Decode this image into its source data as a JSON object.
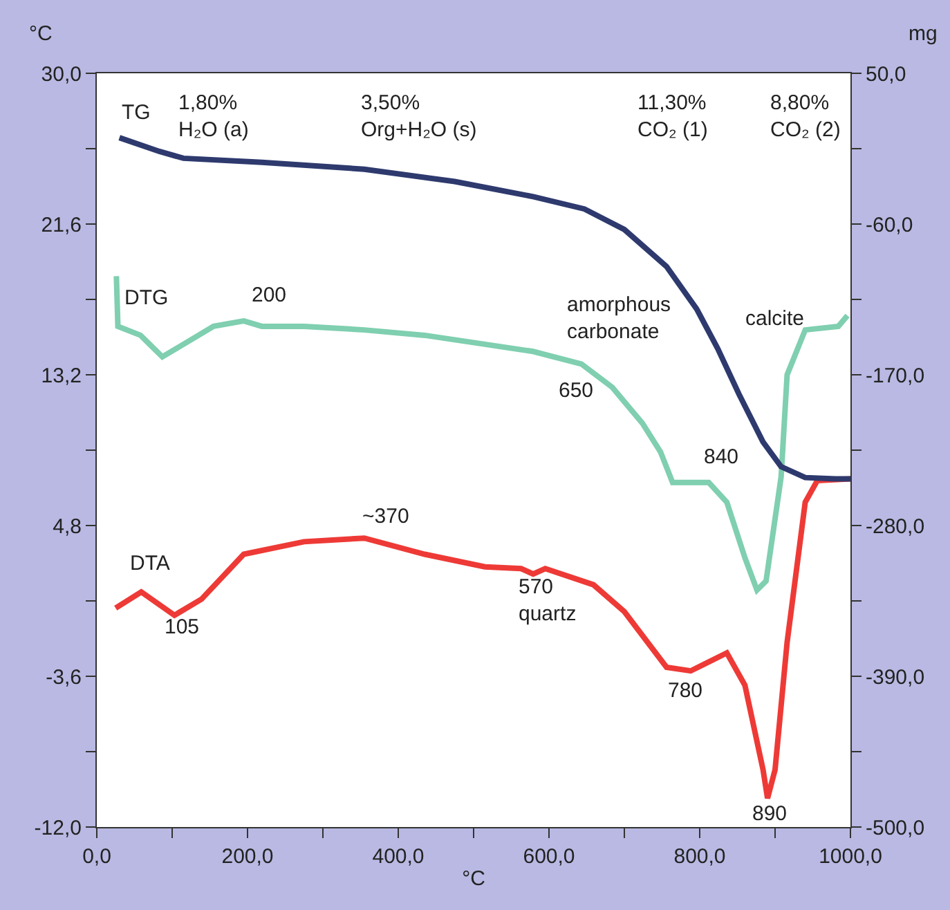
{
  "chart_data": {
    "type": "line",
    "xlabel": "°C",
    "ylabel": "°C",
    "y2label": "mg",
    "xlim": [
      0,
      1000
    ],
    "xticks": [
      {
        "value": 0,
        "label": "0,0"
      },
      {
        "value": 100,
        "label": null
      },
      {
        "value": 200,
        "label": "200,0"
      },
      {
        "value": 300,
        "label": null
      },
      {
        "value": 400,
        "label": "400,0"
      },
      {
        "value": 500,
        "label": null
      },
      {
        "value": 600,
        "label": "600,0"
      },
      {
        "value": 700,
        "label": null
      },
      {
        "value": 800,
        "label": "800,0"
      },
      {
        "value": 900,
        "label": null
      },
      {
        "value": 1000,
        "label": "1000,0"
      }
    ],
    "ylim": [
      -12,
      30
    ],
    "yticks": [
      {
        "value": -12,
        "label": "-12,0"
      },
      {
        "value": -7.8,
        "label": null
      },
      {
        "value": -3.6,
        "label": "-3,6"
      },
      {
        "value": 0.6,
        "label": null
      },
      {
        "value": 4.8,
        "label": "4,8"
      },
      {
        "value": 9,
        "label": null
      },
      {
        "value": 13.2,
        "label": "13,2"
      },
      {
        "value": 17.4,
        "label": null
      },
      {
        "value": 21.6,
        "label": "21,6"
      },
      {
        "value": 25.8,
        "label": null
      },
      {
        "value": 30,
        "label": "30,0"
      }
    ],
    "y2lim": [
      -500,
      50
    ],
    "y2ticks": [
      {
        "value": -500,
        "label": "-500,0"
      },
      {
        "value": -445,
        "label": null
      },
      {
        "value": -390,
        "label": "-390,0"
      },
      {
        "value": -335,
        "label": null
      },
      {
        "value": -280,
        "label": "-280,0"
      },
      {
        "value": -225,
        "label": null
      },
      {
        "value": -170,
        "label": "-170,0"
      },
      {
        "value": -115,
        "label": null
      },
      {
        "value": -60,
        "label": "-60,0"
      },
      {
        "value": -5,
        "label": null
      },
      {
        "value": 50,
        "label": "50,0"
      }
    ],
    "legend": false,
    "marker": "none",
    "line_style": "solid",
    "series": [
      {
        "name": "TG",
        "color": "#2e3a6e",
        "axis": "y2",
        "x": [
          30,
          83,
          115,
          219,
          355,
          475,
          579,
          647,
          700,
          756,
          796,
          824,
          852,
          884,
          908,
          940,
          980,
          1000
        ],
        "values": [
          3,
          -7,
          -12,
          -15,
          -20,
          -29,
          -40,
          -49,
          -64,
          -91,
          -122,
          -151,
          -184,
          -219,
          -237,
          -245,
          -246,
          -246
        ]
      },
      {
        "name": "DTG",
        "color": "#7fcfb0",
        "x": [
          26,
          28,
          58,
          87,
          115,
          155,
          195,
          219,
          275,
          355,
          435,
          515,
          579,
          643,
          684,
          724,
          748,
          764,
          812,
          836,
          860,
          876,
          888,
          908,
          916,
          940,
          984,
          996
        ],
        "values": [
          18.7,
          15.9,
          15.4,
          14.2,
          14.9,
          15.9,
          16.2,
          15.9,
          15.9,
          15.7,
          15.4,
          14.9,
          14.5,
          13.8,
          12.5,
          10.5,
          8.9,
          7.2,
          7.2,
          6.1,
          3.0,
          1.2,
          1.7,
          7.5,
          13.2,
          15.7,
          15.9,
          16.5
        ]
      },
      {
        "name": "DTA",
        "color": "#ee3a36",
        "x": [
          25,
          59,
          103,
          139,
          195,
          275,
          355,
          435,
          515,
          563,
          579,
          595,
          659,
          700,
          756,
          788,
          836,
          860,
          884,
          890,
          900,
          916,
          940,
          956,
          1000
        ],
        "values": [
          0.2,
          1.1,
          -0.2,
          0.7,
          3.2,
          3.9,
          4.1,
          3.2,
          2.5,
          2.4,
          2.1,
          2.4,
          1.5,
          0.0,
          -3.1,
          -3.3,
          -2.3,
          -4.1,
          -8.8,
          -10.4,
          -8.8,
          -1.7,
          6.1,
          7.3,
          7.4
        ]
      }
    ],
    "annotations": [
      "1,80%\nH₂O (a)",
      "3,50%\nOrg+H₂O (s)",
      "11,30%\nCO₂ (1)",
      "8,80%\nCO₂ (2)",
      "200",
      "amorphous\ncarbonate",
      "650",
      "calcite",
      "840",
      "~370",
      "105",
      "570\nquartz",
      "780",
      "890"
    ]
  }
}
